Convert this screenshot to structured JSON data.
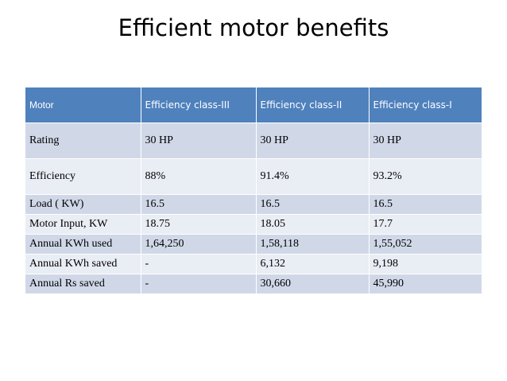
{
  "title": "Efficient motor benefits",
  "table": {
    "headers": [
      "Motor",
      "Efficiency class-III",
      "Efficiency class-II",
      "Efficiency class-I"
    ],
    "rows": [
      [
        "Rating",
        "30 HP",
        "30 HP",
        "30 HP"
      ],
      [
        "Efficiency",
        "88%",
        "91.4%",
        "93.2%"
      ],
      [
        "Load ( KW)",
        "16.5",
        "16.5",
        "16.5"
      ],
      [
        "Motor Input, KW",
        "18.75",
        "18.05",
        "17.7"
      ],
      [
        "Annual KWh used",
        "1,64,250",
        "1,58,118",
        "1,55,052"
      ],
      [
        "Annual KWh saved",
        "-",
        "6,132",
        "9,198"
      ],
      [
        "Annual Rs saved",
        "-",
        "30,660",
        "45,990"
      ]
    ]
  },
  "colors": {
    "header_bg": "#4f81bd",
    "row_dark": "#d0d8e8",
    "row_light": "#e9edf4"
  }
}
